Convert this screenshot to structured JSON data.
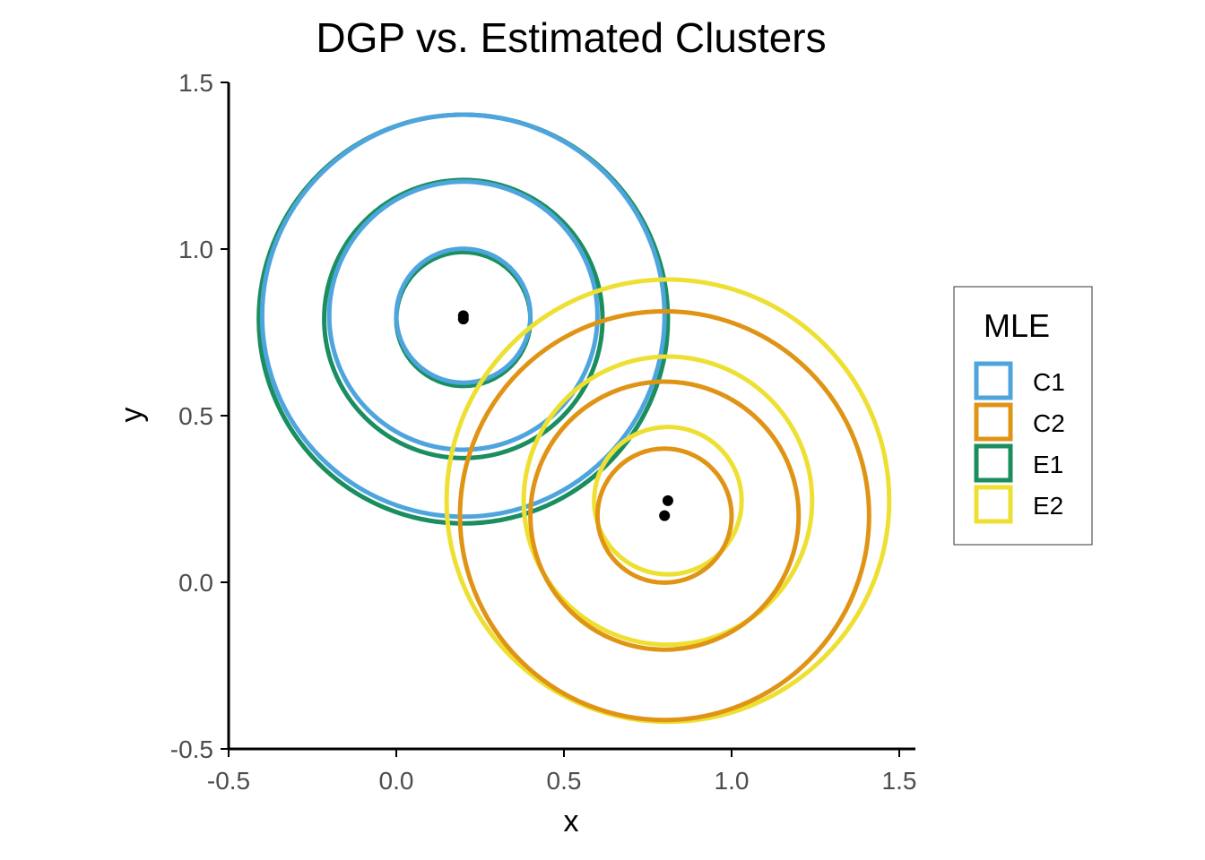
{
  "chart_data": {
    "type": "scatter",
    "title": "DGP vs. Estimated Clusters",
    "xlabel": "x",
    "ylabel": "y",
    "xlim": [
      -0.5,
      1.5
    ],
    "ylim": [
      -0.5,
      1.5
    ],
    "x_ticks": [
      -0.5,
      0.0,
      0.5,
      1.0,
      1.5
    ],
    "x_tick_labels": [
      "-0.5",
      "0.0",
      "0.5",
      "1.0",
      "1.5"
    ],
    "y_ticks": [
      -0.5,
      0.0,
      0.5,
      1.0,
      1.5
    ],
    "y_tick_labels": [
      "-0.5",
      "0.0",
      "0.5",
      "1.0",
      "1.5"
    ],
    "grid": false,
    "legend": {
      "title": "MLE",
      "placement": "right",
      "entries": [
        {
          "label": "C1",
          "color": "#4EA5DE"
        },
        {
          "label": "C2",
          "color": "#E09415"
        },
        {
          "label": "E1",
          "color": "#1A8E5E"
        },
        {
          "label": "E2",
          "color": "#EDE032"
        }
      ]
    },
    "series": [
      {
        "name": "E1",
        "color": "#1A8E5E",
        "center": [
          0.2,
          0.79
        ],
        "radii": [
          0.2,
          0.415,
          0.61
        ]
      },
      {
        "name": "C1",
        "color": "#4EA5DE",
        "center": [
          0.2,
          0.8
        ],
        "radii": [
          0.2,
          0.4,
          0.6
        ]
      },
      {
        "name": "E2",
        "color": "#EDE032",
        "center": [
          0.81,
          0.245
        ],
        "radii": [
          0.22,
          0.43,
          0.66
        ]
      },
      {
        "name": "C2",
        "color": "#E09415",
        "center": [
          0.8,
          0.2
        ],
        "radii": [
          0.2,
          0.4,
          0.61
        ]
      }
    ],
    "points": [
      {
        "x": 0.2,
        "y": 0.8
      },
      {
        "x": 0.2,
        "y": 0.79
      },
      {
        "x": 0.81,
        "y": 0.245
      },
      {
        "x": 0.8,
        "y": 0.2
      }
    ]
  }
}
